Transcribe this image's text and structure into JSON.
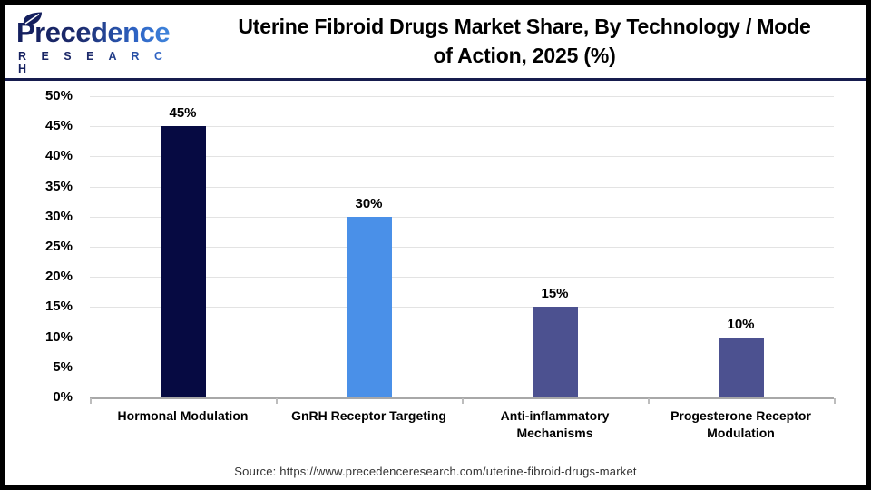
{
  "header": {
    "logo": {
      "wordmark": "Precedence",
      "subtitle": "R E S E A R C H"
    },
    "title_line1": "Uterine Fibroid Drugs Market Share, By Technology / Mode",
    "title_line2": "of Action, 2025 (%)"
  },
  "chart_data": {
    "type": "bar",
    "title": "Uterine Fibroid Drugs Market Share, By Technology / Mode of Action, 2025 (%)",
    "categories": [
      "Hormonal Modulation",
      "GnRH Receptor Targeting",
      "Anti-inflammatory Mechanisms",
      "Progesterone Receptor Modulation"
    ],
    "values": [
      45,
      30,
      15,
      10
    ],
    "data_labels": [
      "45%",
      "30%",
      "15%",
      "10%"
    ],
    "bar_colors": [
      "#060a42",
      "#4a90e8",
      "#4c5190",
      "#4c5190"
    ],
    "ylim": [
      0,
      50
    ],
    "ytick_step": 5,
    "ytick_labels": [
      "0%",
      "5%",
      "10%",
      "15%",
      "20%",
      "25%",
      "30%",
      "35%",
      "40%",
      "45%",
      "50%"
    ],
    "xlabel": "",
    "ylabel": "",
    "grid": "horizontal",
    "legend": "none"
  },
  "colors": {
    "navy_bar": "#060a42",
    "blue_bar": "#4a90e8",
    "slate_bar": "#4c5190",
    "grid_line": "#e3e3e3",
    "axis_line": "#a8a8a8",
    "header_divider": "#161c4e",
    "logo_navy": "#141f5e",
    "logo_blue": "#3f85dc",
    "frame_border": "#000000"
  },
  "footer": {
    "source": "Source: https://www.precedenceresearch.com/uterine-fibroid-drugs-market"
  }
}
